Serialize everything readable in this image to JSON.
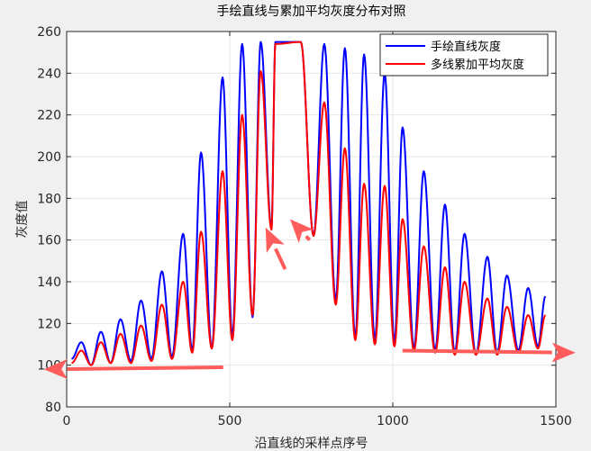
{
  "figure": {
    "background": "#f0f0f0"
  },
  "chart_data": {
    "type": "line",
    "title": "手绘直线与累加平均灰度分布对照",
    "xlabel": "沿直线的采样点序号",
    "ylabel": "灰度值",
    "xlim": [
      0,
      1500
    ],
    "ylim": [
      80,
      260
    ],
    "xticks": [
      0,
      500,
      1000,
      1500
    ],
    "yticks": [
      80,
      100,
      120,
      140,
      160,
      180,
      200,
      220,
      240,
      260
    ],
    "grid": true,
    "legend_position": "top-right",
    "series": [
      {
        "name": "手绘直线灰度",
        "color": "#0000ff",
        "peaks": [
          {
            "x": 45,
            "y": 111
          },
          {
            "x": 105,
            "y": 116
          },
          {
            "x": 165,
            "y": 122
          },
          {
            "x": 228,
            "y": 131
          },
          {
            "x": 292,
            "y": 145
          },
          {
            "x": 357,
            "y": 163
          },
          {
            "x": 412,
            "y": 202
          },
          {
            "x": 478,
            "y": 238
          },
          {
            "x": 538,
            "y": 254
          },
          {
            "x": 595,
            "y": 255
          },
          {
            "x": 640,
            "y": 255
          },
          {
            "x": 718,
            "y": 255
          },
          {
            "x": 790,
            "y": 254
          },
          {
            "x": 853,
            "y": 252
          },
          {
            "x": 912,
            "y": 249
          },
          {
            "x": 975,
            "y": 240
          },
          {
            "x": 1030,
            "y": 214
          },
          {
            "x": 1095,
            "y": 193
          },
          {
            "x": 1160,
            "y": 177
          },
          {
            "x": 1220,
            "y": 163
          },
          {
            "x": 1290,
            "y": 152
          },
          {
            "x": 1350,
            "y": 143
          },
          {
            "x": 1415,
            "y": 137
          },
          {
            "x": 1468,
            "y": 133
          }
        ],
        "troughs": [
          {
            "x": 15,
            "y": 103
          },
          {
            "x": 75,
            "y": 100
          },
          {
            "x": 135,
            "y": 101
          },
          {
            "x": 197,
            "y": 102
          },
          {
            "x": 260,
            "y": 103
          },
          {
            "x": 323,
            "y": 104
          },
          {
            "x": 385,
            "y": 107
          },
          {
            "x": 445,
            "y": 108
          },
          {
            "x": 508,
            "y": 114
          },
          {
            "x": 570,
            "y": 123
          },
          {
            "x": 628,
            "y": 166
          },
          {
            "x": 757,
            "y": 162
          },
          {
            "x": 825,
            "y": 131
          },
          {
            "x": 885,
            "y": 113
          },
          {
            "x": 945,
            "y": 112
          },
          {
            "x": 1005,
            "y": 111
          },
          {
            "x": 1065,
            "y": 108
          },
          {
            "x": 1130,
            "y": 107
          },
          {
            "x": 1190,
            "y": 106
          },
          {
            "x": 1255,
            "y": 105
          },
          {
            "x": 1320,
            "y": 106
          },
          {
            "x": 1385,
            "y": 107
          },
          {
            "x": 1445,
            "y": 109
          }
        ]
      },
      {
        "name": "多线累加平均灰度",
        "color": "#ff0000",
        "peaks": [
          {
            "x": 45,
            "y": 107
          },
          {
            "x": 105,
            "y": 111
          },
          {
            "x": 165,
            "y": 115
          },
          {
            "x": 228,
            "y": 119
          },
          {
            "x": 292,
            "y": 129
          },
          {
            "x": 357,
            "y": 140
          },
          {
            "x": 412,
            "y": 164
          },
          {
            "x": 478,
            "y": 193
          },
          {
            "x": 538,
            "y": 220
          },
          {
            "x": 595,
            "y": 241
          },
          {
            "x": 640,
            "y": 254
          },
          {
            "x": 718,
            "y": 255
          },
          {
            "x": 790,
            "y": 226
          },
          {
            "x": 853,
            "y": 204
          },
          {
            "x": 912,
            "y": 187
          },
          {
            "x": 975,
            "y": 186
          },
          {
            "x": 1030,
            "y": 170
          },
          {
            "x": 1095,
            "y": 157
          },
          {
            "x": 1160,
            "y": 147
          },
          {
            "x": 1220,
            "y": 140
          },
          {
            "x": 1290,
            "y": 132
          },
          {
            "x": 1350,
            "y": 128
          },
          {
            "x": 1415,
            "y": 124
          },
          {
            "x": 1468,
            "y": 124
          }
        ],
        "troughs": [
          {
            "x": 15,
            "y": 101
          },
          {
            "x": 75,
            "y": 100
          },
          {
            "x": 135,
            "y": 101
          },
          {
            "x": 197,
            "y": 101
          },
          {
            "x": 260,
            "y": 102
          },
          {
            "x": 323,
            "y": 103
          },
          {
            "x": 385,
            "y": 106
          },
          {
            "x": 445,
            "y": 108
          },
          {
            "x": 508,
            "y": 112
          },
          {
            "x": 570,
            "y": 124
          },
          {
            "x": 628,
            "y": 165
          },
          {
            "x": 757,
            "y": 162
          },
          {
            "x": 825,
            "y": 129
          },
          {
            "x": 885,
            "y": 112
          },
          {
            "x": 945,
            "y": 110
          },
          {
            "x": 1005,
            "y": 109
          },
          {
            "x": 1065,
            "y": 107
          },
          {
            "x": 1130,
            "y": 106
          },
          {
            "x": 1190,
            "y": 105
          },
          {
            "x": 1255,
            "y": 105
          },
          {
            "x": 1320,
            "y": 105
          },
          {
            "x": 1385,
            "y": 106
          },
          {
            "x": 1445,
            "y": 108
          }
        ]
      }
    ],
    "annotations": [
      {
        "kind": "arrow",
        "color": "#ff5c5c",
        "from": {
          "x": 480,
          "y": 99
        },
        "to": {
          "x": -70,
          "y": 98
        }
      },
      {
        "kind": "arrow",
        "color": "#ff5c5c",
        "from": {
          "x": 1030,
          "y": 107
        },
        "to": {
          "x": 1560,
          "y": 106
        }
      },
      {
        "kind": "arrow",
        "color": "#ff5c5c",
        "from": {
          "x": 670,
          "y": 146
        },
        "to": {
          "x": 610,
          "y": 166
        }
      },
      {
        "kind": "arrow",
        "color": "#ff5c5c",
        "from": {
          "x": 745,
          "y": 160
        },
        "to": {
          "x": 685,
          "y": 170
        }
      }
    ]
  }
}
